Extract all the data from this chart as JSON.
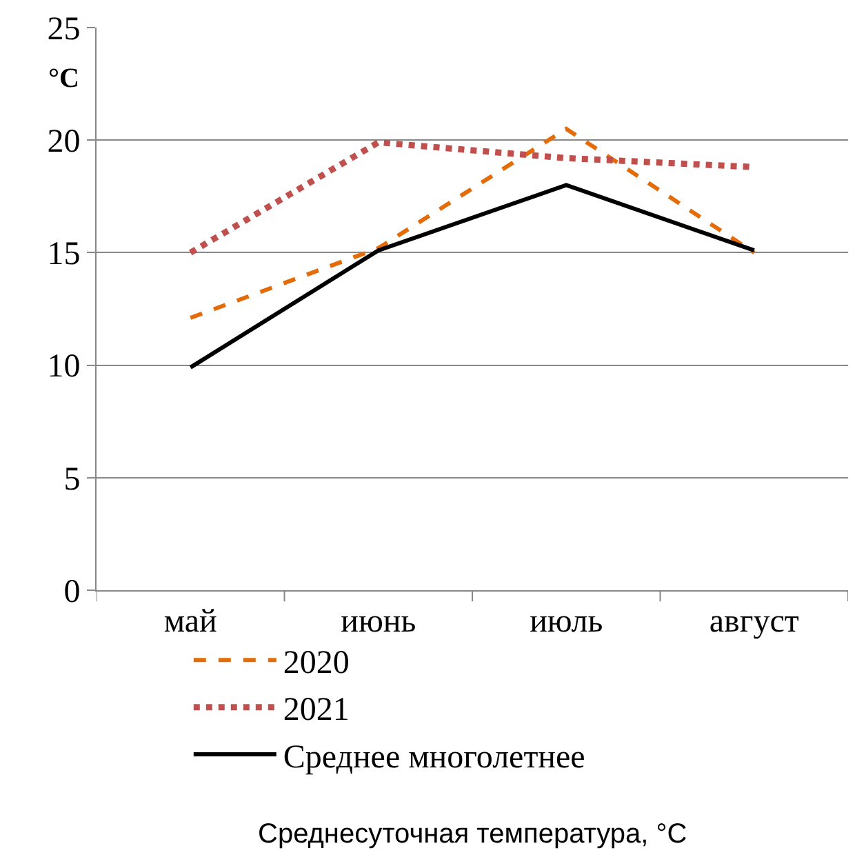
{
  "chart_data": {
    "type": "line",
    "title": "Среднесуточная температура, °C",
    "ylabel": "°C",
    "categories": [
      "май",
      "июнь",
      "июль",
      "август"
    ],
    "series": [
      {
        "name": "2020",
        "color": "#e36c09",
        "line_style": "dashed",
        "values": [
          12.1,
          15.2,
          20.5,
          15.0
        ]
      },
      {
        "name": "2021",
        "color": "#c0504d",
        "line_style": "dotted",
        "values": [
          15.0,
          19.9,
          19.2,
          18.8
        ]
      },
      {
        "name": "Среднее многолетнее",
        "color": "#000000",
        "line_style": "solid",
        "values": [
          9.9,
          15.1,
          18.0,
          15.1
        ]
      }
    ],
    "ylim": [
      0,
      25
    ],
    "yticks": [
      0,
      5,
      10,
      15,
      20,
      25
    ],
    "grid": "y",
    "legend": "bottom left",
    "marker": "none"
  }
}
